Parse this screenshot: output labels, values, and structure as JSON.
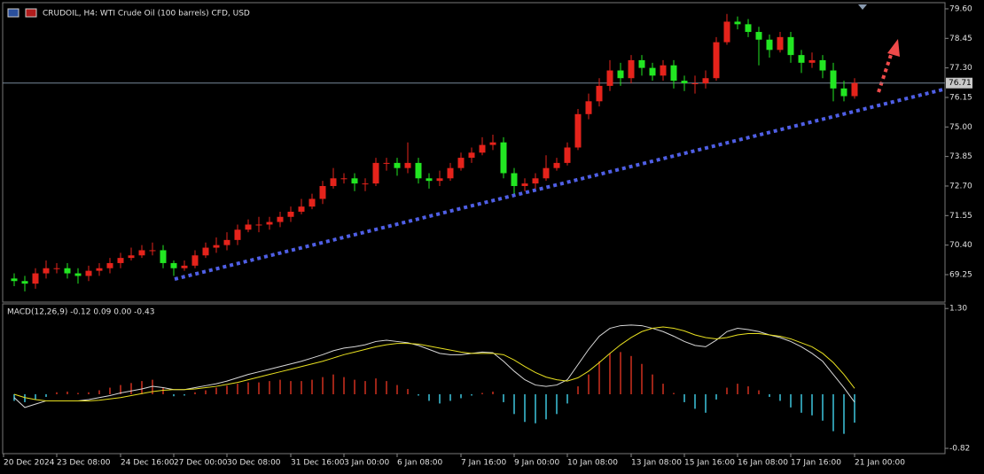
{
  "chart_data": [
    {
      "type": "candlestick",
      "title": "CRUDOIL, H4:  WTI Crude Oil (100 barrels) CFD, USD",
      "up_color": "#e5231b",
      "down_color": "#22e622",
      "open": [
        69.1,
        69.0,
        68.9,
        69.3,
        69.5,
        69.5,
        69.3,
        69.2,
        69.4,
        69.5,
        69.7,
        69.9,
        70.0,
        70.2,
        70.2,
        69.7,
        69.5,
        69.6,
        70.0,
        70.3,
        70.4,
        70.6,
        71.0,
        71.2,
        71.2,
        71.3,
        71.5,
        71.7,
        71.9,
        72.2,
        72.7,
        73.0,
        73.0,
        72.8,
        72.8,
        73.6,
        73.6,
        73.4,
        73.6,
        73.0,
        72.9,
        73.0,
        73.4,
        73.8,
        74.0,
        74.3,
        74.4,
        73.2,
        72.7,
        72.8,
        73.0,
        73.4,
        73.6,
        74.2,
        75.5,
        76.0,
        76.6,
        77.2,
        76.9,
        77.6,
        77.3,
        77.0,
        77.4,
        76.8,
        76.7,
        76.7,
        76.9,
        78.3,
        79.1,
        79.0,
        78.7,
        78.4,
        78.0,
        78.5,
        77.8,
        77.5,
        77.6,
        77.2,
        76.5,
        76.2
      ],
      "high": [
        69.3,
        69.2,
        69.5,
        69.8,
        69.7,
        69.7,
        69.5,
        69.6,
        69.7,
        69.9,
        70.1,
        70.3,
        70.4,
        70.5,
        70.4,
        69.8,
        69.8,
        70.2,
        70.5,
        70.7,
        70.9,
        71.2,
        71.4,
        71.5,
        71.5,
        71.7,
        71.9,
        72.2,
        72.4,
        72.9,
        73.4,
        73.2,
        73.2,
        73.0,
        73.8,
        73.8,
        73.8,
        74.4,
        73.8,
        73.2,
        73.3,
        73.6,
        74.0,
        74.2,
        74.6,
        74.7,
        74.6,
        73.4,
        73.0,
        73.2,
        73.9,
        73.8,
        74.4,
        75.7,
        76.3,
        76.9,
        77.6,
        77.5,
        77.8,
        77.8,
        77.5,
        77.6,
        77.6,
        77.0,
        77.0,
        77.2,
        78.5,
        79.4,
        79.3,
        79.2,
        78.9,
        78.6,
        78.7,
        78.7,
        78.0,
        77.9,
        77.8,
        77.5,
        76.8,
        76.9
      ],
      "low": [
        68.8,
        68.6,
        68.7,
        69.1,
        69.3,
        69.1,
        68.9,
        69.0,
        69.2,
        69.3,
        69.5,
        69.8,
        69.9,
        70.0,
        69.5,
        69.2,
        69.4,
        69.5,
        69.9,
        70.1,
        70.2,
        70.4,
        70.9,
        70.9,
        71.0,
        71.1,
        71.3,
        71.6,
        71.8,
        72.0,
        72.6,
        72.8,
        72.5,
        72.5,
        72.7,
        73.3,
        73.1,
        73.2,
        72.8,
        72.6,
        72.7,
        72.9,
        73.3,
        73.6,
        73.9,
        74.1,
        73.0,
        72.4,
        72.5,
        72.6,
        72.9,
        73.3,
        73.5,
        74.1,
        75.3,
        75.8,
        76.4,
        76.6,
        76.7,
        77.0,
        76.8,
        76.8,
        76.5,
        76.4,
        76.3,
        76.5,
        76.8,
        78.2,
        78.8,
        78.5,
        77.4,
        77.7,
        77.9,
        77.5,
        77.1,
        77.3,
        76.9,
        76.0,
        76.0,
        76.1
      ],
      "close": [
        69.0,
        68.9,
        69.3,
        69.5,
        69.5,
        69.3,
        69.2,
        69.4,
        69.5,
        69.7,
        69.9,
        70.0,
        70.2,
        70.2,
        69.7,
        69.5,
        69.6,
        70.0,
        70.3,
        70.4,
        70.6,
        71.0,
        71.2,
        71.2,
        71.3,
        71.5,
        71.7,
        71.9,
        72.2,
        72.7,
        73.0,
        73.0,
        72.8,
        72.8,
        73.6,
        73.6,
        73.4,
        73.6,
        73.0,
        72.9,
        73.0,
        73.4,
        73.8,
        74.0,
        74.3,
        74.4,
        73.2,
        72.7,
        72.8,
        73.0,
        73.4,
        73.6,
        74.2,
        75.5,
        76.0,
        76.6,
        77.2,
        76.9,
        77.6,
        77.3,
        77.0,
        77.4,
        76.8,
        76.7,
        76.7,
        76.9,
        78.3,
        79.1,
        79.0,
        78.7,
        78.4,
        78.0,
        78.5,
        77.8,
        77.5,
        77.6,
        77.2,
        76.5,
        76.2,
        76.71
      ],
      "bid_line": 76.71,
      "ylim": [
        68.18,
        79.84
      ],
      "yticks": [
        {
          "value": 79.6,
          "label": "79.60"
        },
        78.45,
        {
          "value": 77.3,
          "label": "77.30"
        },
        76.15,
        {
          "value": 75.0,
          "label": "75.00"
        },
        73.85,
        {
          "value": 72.7,
          "label": "72.70"
        },
        71.55,
        {
          "value": 70.4,
          "label": "70.40"
        },
        69.25
      ]
    },
    {
      "type": "macd",
      "title": "MACD(12,26,9) -0.12 0.09 0.00 -0.43",
      "histogram": [
        -0.1,
        -0.12,
        -0.08,
        -0.04,
        0.03,
        0.04,
        0.02,
        0.03,
        0.06,
        0.1,
        0.14,
        0.17,
        0.2,
        0.22,
        0.1,
        -0.03,
        -0.02,
        0.03,
        0.06,
        0.1,
        0.13,
        0.16,
        0.18,
        0.18,
        0.2,
        0.22,
        0.2,
        0.2,
        0.22,
        0.26,
        0.3,
        0.26,
        0.22,
        0.2,
        0.24,
        0.2,
        0.14,
        0.08,
        -0.02,
        -0.1,
        -0.14,
        -0.1,
        -0.06,
        -0.02,
        0.02,
        0.04,
        -0.12,
        -0.3,
        -0.42,
        -0.44,
        -0.38,
        -0.3,
        -0.14,
        0.12,
        0.3,
        0.5,
        0.62,
        0.64,
        0.58,
        0.46,
        0.3,
        0.16,
        0.02,
        -0.12,
        -0.22,
        -0.28,
        -0.08,
        0.1,
        0.16,
        0.12,
        0.06,
        -0.04,
        -0.1,
        -0.2,
        -0.28,
        -0.32,
        -0.4,
        -0.56,
        -0.6,
        -0.43
      ],
      "hist_pos_color": "#d0301f",
      "hist_neg_color": "#3ec6de",
      "series": [
        {
          "color": "#d8d8d8",
          "values": [
            -0.05,
            -0.2,
            -0.15,
            -0.1,
            -0.1,
            -0.1,
            -0.1,
            -0.08,
            -0.05,
            -0.02,
            0.02,
            0.05,
            0.08,
            0.12,
            0.1,
            0.07,
            0.07,
            0.1,
            0.13,
            0.16,
            0.2,
            0.25,
            0.3,
            0.34,
            0.38,
            0.42,
            0.46,
            0.5,
            0.55,
            0.6,
            0.66,
            0.7,
            0.72,
            0.75,
            0.8,
            0.82,
            0.8,
            0.78,
            0.74,
            0.68,
            0.62,
            0.6,
            0.6,
            0.62,
            0.64,
            0.63,
            0.5,
            0.35,
            0.22,
            0.14,
            0.12,
            0.14,
            0.22,
            0.45,
            0.68,
            0.88,
            1.0,
            1.04,
            1.05,
            1.04,
            1.0,
            0.95,
            0.88,
            0.8,
            0.74,
            0.72,
            0.82,
            0.95,
            1.0,
            0.98,
            0.95,
            0.9,
            0.86,
            0.8,
            0.72,
            0.62,
            0.5,
            0.3,
            0.1,
            -0.12
          ]
        },
        {
          "color": "#e8e020",
          "values": [
            0.0,
            -0.05,
            -0.08,
            -0.1,
            -0.1,
            -0.1,
            -0.1,
            -0.1,
            -0.09,
            -0.07,
            -0.05,
            -0.02,
            0.01,
            0.04,
            0.06,
            0.07,
            0.07,
            0.08,
            0.1,
            0.12,
            0.15,
            0.18,
            0.22,
            0.26,
            0.3,
            0.34,
            0.38,
            0.42,
            0.46,
            0.5,
            0.55,
            0.6,
            0.64,
            0.68,
            0.72,
            0.75,
            0.77,
            0.77,
            0.76,
            0.73,
            0.7,
            0.67,
            0.64,
            0.62,
            0.62,
            0.62,
            0.6,
            0.52,
            0.42,
            0.33,
            0.26,
            0.22,
            0.2,
            0.25,
            0.35,
            0.48,
            0.62,
            0.75,
            0.86,
            0.95,
            1.0,
            1.02,
            1.0,
            0.96,
            0.9,
            0.86,
            0.84,
            0.86,
            0.9,
            0.92,
            0.92,
            0.9,
            0.88,
            0.84,
            0.78,
            0.72,
            0.62,
            0.48,
            0.3,
            0.09
          ]
        }
      ],
      "ylim": [
        -0.9,
        1.37
      ],
      "yticks": [
        {
          "value": 1.3,
          "label": "1.30"
        },
        -0.82
      ],
      "xticks": [
        {
          "value": -1,
          "label": "20 Dec 2024"
        },
        {
          "value": 4,
          "label": "23 Dec 08:00"
        },
        {
          "value": 10,
          "label": "24 Dec 16:00"
        },
        {
          "value": 15,
          "label": "27 Dec 00:00"
        },
        {
          "value": 20,
          "label": "30 Dec 08:00"
        },
        {
          "value": 26,
          "label": "31 Dec 16:00"
        },
        {
          "value": 31,
          "label": "3 Jan 00:00"
        },
        {
          "value": 36,
          "label": "6 Jan 08:00"
        },
        {
          "value": 42,
          "label": "7 Jan 16:00"
        },
        {
          "value": 47,
          "label": "9 Jan 00:00"
        },
        {
          "value": 52,
          "label": "10 Jan 08:00"
        },
        {
          "value": 58,
          "label": "13 Jan 08:00"
        },
        {
          "value": 63,
          "label": "15 Jan 16:00"
        },
        {
          "value": 68,
          "label": "16 Jan 08:00"
        },
        {
          "value": 73,
          "label": "17 Jan 16:00"
        },
        {
          "value": 79,
          "label": "21 Jan 00:00"
        }
      ]
    }
  ]
}
